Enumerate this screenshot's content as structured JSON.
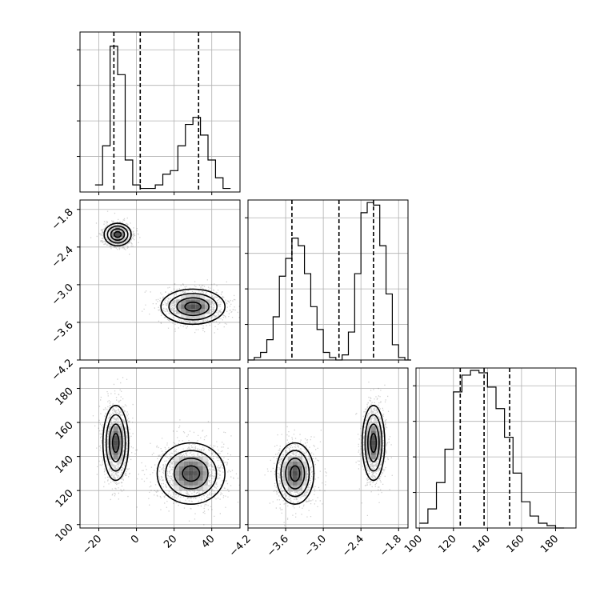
{
  "chart_data": {
    "type": "corner",
    "title": "",
    "grid": true,
    "parameters": [
      {
        "name": "",
        "range": [
          -30,
          55
        ],
        "ticks": [
          -20,
          0,
          20,
          40
        ],
        "tick_labels": [
          "−20",
          "0",
          "20",
          "40"
        ]
      },
      {
        "name": "",
        "range": [
          -4.2,
          -1.65
        ],
        "ticks": [
          -4.2,
          -3.6,
          -3.0,
          -2.4,
          -1.8
        ],
        "tick_labels": [
          "−4.2",
          "−3.6",
          "−3.0",
          "−2.4",
          "−1.8"
        ]
      },
      {
        "name": "",
        "range": [
          98,
          192
        ],
        "ticks": [
          100,
          120,
          140,
          160,
          180
        ],
        "tick_labels": [
          "100",
          "120",
          "140",
          "160",
          "180"
        ]
      }
    ],
    "histograms": [
      {
        "param": 0,
        "quantiles": [
          -12,
          2,
          33
        ],
        "bin_edges": [
          -22,
          -18,
          -14,
          -10,
          -6,
          -2,
          2,
          6,
          10,
          14,
          18,
          22,
          26,
          30,
          34,
          38,
          42,
          46,
          50
        ],
        "counts": [
          2,
          13,
          41,
          33,
          9,
          2,
          1,
          1,
          2,
          5,
          6,
          13,
          19,
          21,
          16,
          9,
          4,
          1
        ],
        "counts_max": 45
      },
      {
        "param": 1,
        "quantiles": [
          -3.5,
          -2.75,
          -2.2
        ],
        "bin_edges": [
          -4.2,
          -4.1,
          -4.0,
          -3.9,
          -3.8,
          -3.7,
          -3.6,
          -3.5,
          -3.4,
          -3.3,
          -3.2,
          -3.1,
          -3.0,
          -2.9,
          -2.8,
          -2.7,
          -2.6,
          -2.5,
          -2.4,
          -2.3,
          -2.2,
          -2.1,
          -2.0,
          -1.9,
          -1.8,
          -1.7,
          -1.6
        ],
        "counts": [
          0,
          1,
          3,
          8,
          17,
          33,
          40,
          48,
          45,
          34,
          21,
          12,
          3,
          1,
          0,
          2,
          11,
          34,
          58,
          62,
          61,
          45,
          26,
          6,
          1,
          0
        ],
        "counts_max": 63
      },
      {
        "param": 2,
        "quantiles": [
          124,
          138,
          153
        ],
        "bin_edges": [
          100,
          105,
          110,
          115,
          120,
          125,
          130,
          135,
          140,
          145,
          150,
          155,
          160,
          165,
          170,
          175,
          180,
          185
        ],
        "counts": [
          2,
          8,
          19,
          33,
          57,
          64,
          66,
          65,
          59,
          50,
          38,
          23,
          11,
          5,
          2,
          1,
          0
        ],
        "counts_max": 67
      }
    ],
    "scatter_panels": [
      {
        "x_param": 0,
        "y_param": 1,
        "clusters": [
          {
            "center": [
              -10,
              -2.2
            ],
            "sd": [
              3.6,
              0.09
            ]
          },
          {
            "center": [
              30,
              -3.35
            ],
            "sd": [
              8.5,
              0.14
            ]
          }
        ]
      },
      {
        "x_param": 0,
        "y_param": 2,
        "clusters": [
          {
            "center": [
              -11,
              148
            ],
            "sd": [
              3.4,
              11
            ]
          },
          {
            "center": [
              29,
              130
            ],
            "sd": [
              9,
              9
            ]
          }
        ]
      },
      {
        "x_param": 1,
        "y_param": 2,
        "clusters": [
          {
            "center": [
              -3.45,
              130
            ],
            "sd": [
              0.15,
              9
            ]
          },
          {
            "center": [
              -2.2,
              148
            ],
            "sd": [
              0.09,
              11
            ]
          }
        ]
      }
    ]
  }
}
